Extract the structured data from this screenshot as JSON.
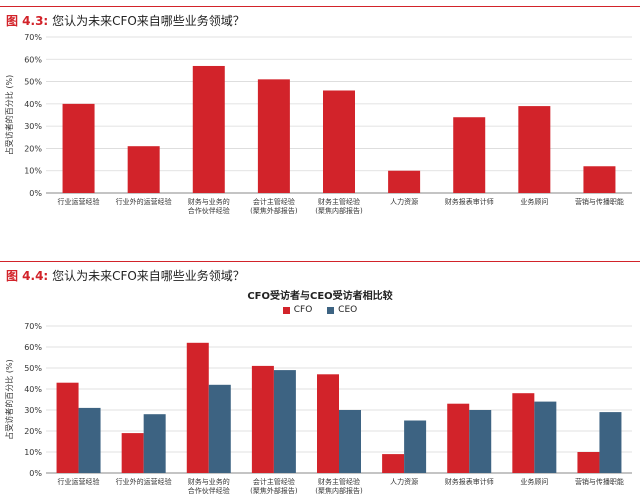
{
  "figures": [
    {
      "number": "图 4.3:",
      "title": "您认为未来CFO来自哪些业务领域？"
    },
    {
      "number": "图 4.4:",
      "title": "您认为未来CFO来自哪些业务领域？"
    }
  ],
  "colors": {
    "accent": "#d2232a",
    "cfo": "#d2232a",
    "ceo": "#3d6382",
    "grid": "#d9d9d9"
  },
  "chart_data": [
    {
      "type": "bar",
      "title": "",
      "ylabel": "占受访者的百分比 (%)",
      "ylim": [
        0,
        70
      ],
      "yticks": [
        "0%",
        "10%",
        "20%",
        "30%",
        "40%",
        "50%",
        "60%",
        "70%"
      ],
      "categories": [
        [
          "行业运营经验"
        ],
        [
          "行业外的运营经验"
        ],
        [
          "财务与业务的",
          "合作伙伴经验"
        ],
        [
          "会计主管经验",
          "(聚焦外部报告)"
        ],
        [
          "财务主管经验",
          "(聚焦内部报告)"
        ],
        [
          "人力资源"
        ],
        [
          "财务报表审计师"
        ],
        [
          "业务顾问"
        ],
        [
          "营销与传播职能"
        ]
      ],
      "series": [
        {
          "values": [
            40,
            21,
            57,
            51,
            46,
            10,
            34,
            39,
            12
          ]
        }
      ]
    },
    {
      "type": "bar",
      "title": "CFO受访者与CEO受访者相比较",
      "ylabel": "占受访者的百分比 (%)",
      "ylim": [
        0,
        70
      ],
      "yticks": [
        "0%",
        "10%",
        "20%",
        "30%",
        "40%",
        "50%",
        "60%",
        "70%"
      ],
      "categories": [
        [
          "行业运营经验"
        ],
        [
          "行业外的运营经验"
        ],
        [
          "财务与业务的",
          "合作伙伴经验"
        ],
        [
          "会计主管经验",
          "(聚焦外部报告)"
        ],
        [
          "财务主管经验",
          "(聚焦内部报告)"
        ],
        [
          "人力资源"
        ],
        [
          "财务报表审计师"
        ],
        [
          "业务顾问"
        ],
        [
          "营销与传播职能"
        ]
      ],
      "series": [
        {
          "name": "CFO",
          "values": [
            43,
            19,
            62,
            51,
            47,
            9,
            33,
            38,
            10
          ]
        },
        {
          "name": "CEO",
          "values": [
            31,
            28,
            42,
            49,
            30,
            25,
            30,
            34,
            29
          ]
        }
      ]
    }
  ]
}
